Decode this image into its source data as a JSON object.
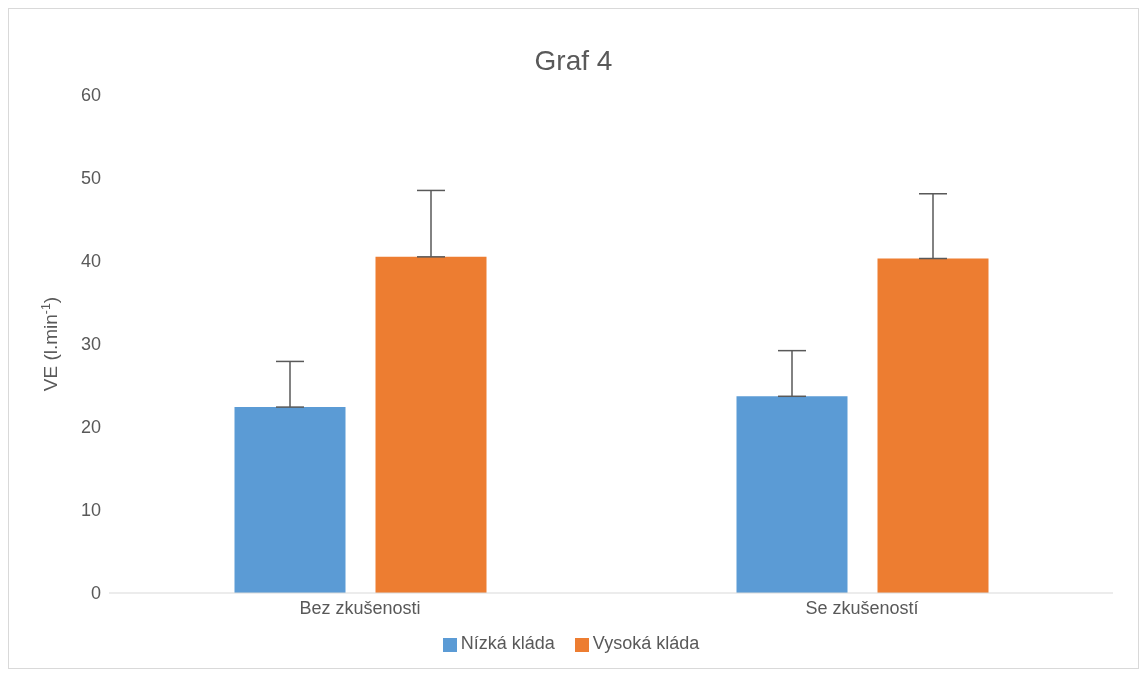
{
  "chart_data": {
    "type": "bar",
    "title": "Graf 4",
    "ylabel": "VE (l.min$^{-1}$)",
    "categories": [
      "Bez zkušenosti",
      "Se zkušeností"
    ],
    "series": [
      {
        "name": "Nízká kláda",
        "color": "#5b9bd5",
        "values": [
          22.4,
          23.7
        ],
        "errors": [
          [
            22.4,
            27.9
          ],
          [
            23.7,
            29.2
          ]
        ]
      },
      {
        "name": "Vysoká kláda",
        "color": "#ed7d31",
        "values": [
          40.5,
          40.3
        ],
        "errors": [
          [
            40.5,
            48.5
          ],
          [
            40.3,
            48.1
          ]
        ]
      }
    ],
    "ylim": [
      0,
      60
    ],
    "yticks": [
      0,
      10,
      20,
      30,
      40,
      50,
      60
    ],
    "grid": false,
    "legend": "bottom"
  }
}
